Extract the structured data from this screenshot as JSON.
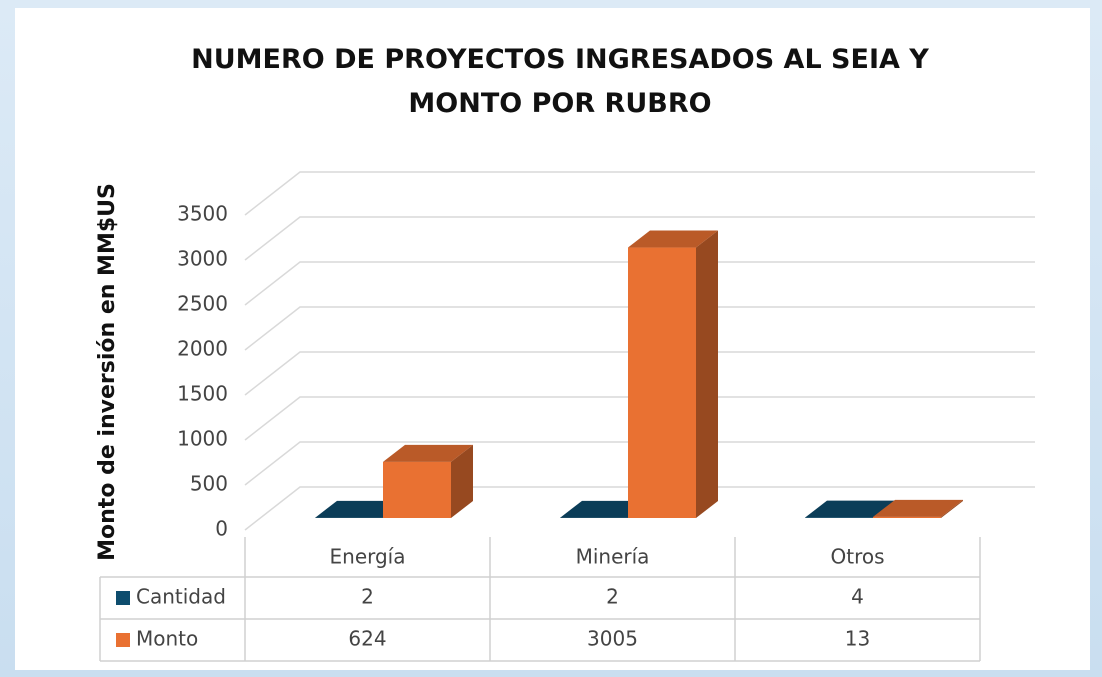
{
  "chart_data": {
    "type": "bar3d",
    "title": "NUMERO DE PROYECTOS INGRESADOS AL SEIA Y MONTO POR RUBRO",
    "y_axis_label": "Monto de inversión en MM$US",
    "categories": [
      "Energía",
      "Minería",
      "Otros"
    ],
    "series": [
      {
        "name": "Cantidad",
        "color": "#0e4d6e",
        "values": [
          2,
          2,
          4
        ]
      },
      {
        "name": "Monto",
        "color": "#e97132",
        "values": [
          624,
          3005,
          13
        ]
      }
    ],
    "ylim": [
      0,
      3500
    ],
    "yticks": [
      0,
      500,
      1000,
      1500,
      2000,
      2500,
      3000,
      3500
    ],
    "grid": true,
    "data_table": true
  }
}
